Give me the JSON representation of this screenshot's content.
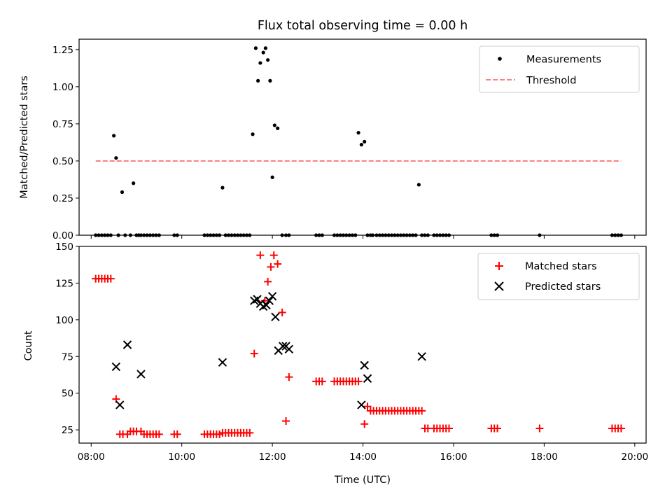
{
  "chart_data": [
    {
      "type": "scatter",
      "title": "Flux total observing time = 0.00 h",
      "xlabel": "",
      "ylabel": "Matched/Predicted stars",
      "xlim": [
        "07:44",
        "20:15"
      ],
      "ylim": [
        0,
        1.32
      ],
      "yticks": [
        "0.00",
        "0.25",
        "0.50",
        "0.75",
        "1.00",
        "1.25"
      ],
      "legend_position": "top-right",
      "series": [
        {
          "name": "Measurements",
          "kind": "points",
          "color": "#000000",
          "x": [
            "08:06",
            "08:10",
            "08:14",
            "08:18",
            "08:22",
            "08:26",
            "08:30",
            "08:33",
            "08:36",
            "08:41",
            "08:45",
            "08:52",
            "08:56",
            "09:00",
            "09:03",
            "09:06",
            "09:10",
            "09:14",
            "09:18",
            "09:22",
            "09:26",
            "09:30",
            "09:50",
            "09:54",
            "10:30",
            "10:34",
            "10:38",
            "10:42",
            "10:46",
            "10:50",
            "10:54",
            "10:58",
            "11:02",
            "11:06",
            "11:10",
            "11:14",
            "11:18",
            "11:22",
            "11:26",
            "11:30",
            "11:34",
            "11:38",
            "11:41",
            "11:44",
            "11:48",
            "11:51",
            "11:54",
            "11:57",
            "12:00",
            "12:03",
            "12:07",
            "12:13",
            "12:18",
            "12:22",
            "12:58",
            "13:02",
            "13:06",
            "13:22",
            "13:26",
            "13:30",
            "13:34",
            "13:38",
            "13:42",
            "13:46",
            "13:50",
            "13:54",
            "13:58",
            "14:02",
            "14:06",
            "14:10",
            "14:13",
            "14:18",
            "14:22",
            "14:26",
            "14:30",
            "14:34",
            "14:38",
            "14:42",
            "14:46",
            "14:50",
            "14:54",
            "14:58",
            "15:02",
            "15:06",
            "15:10",
            "15:14",
            "15:18",
            "15:22",
            "15:26",
            "15:34",
            "15:38",
            "15:42",
            "15:46",
            "15:50",
            "15:54",
            "16:50",
            "16:54",
            "16:58",
            "17:54",
            "19:30",
            "19:34",
            "19:38",
            "19:42"
          ],
          "y": [
            0,
            0,
            0,
            0,
            0,
            0,
            0.67,
            0.52,
            0,
            0.29,
            0,
            0,
            0.35,
            0,
            0,
            0,
            0,
            0,
            0,
            0,
            0,
            0,
            0,
            0,
            0,
            0,
            0,
            0,
            0,
            0,
            0.32,
            0,
            0,
            0,
            0,
            0,
            0,
            0,
            0,
            0,
            0.68,
            1.26,
            1.04,
            1.16,
            1.23,
            1.26,
            1.18,
            1.04,
            0.39,
            0.74,
            0.72,
            0,
            0,
            0,
            0,
            0,
            0,
            0,
            0,
            0,
            0,
            0,
            0,
            0,
            0,
            0.69,
            0.61,
            0.63,
            0,
            0,
            0,
            0,
            0,
            0,
            0,
            0,
            0,
            0,
            0,
            0,
            0,
            0,
            0,
            0,
            0,
            0.34,
            0,
            0,
            0,
            0,
            0,
            0,
            0,
            0,
            0,
            0,
            0,
            0,
            0,
            0,
            0,
            0,
            0
          ]
        },
        {
          "name": "Threshold",
          "kind": "dashed-line",
          "color": "#ff8080",
          "x": [
            "08:06",
            "19:42"
          ],
          "y": [
            0.5,
            0.5
          ]
        }
      ]
    },
    {
      "type": "scatter",
      "title": "",
      "xlabel": "Time (UTC)",
      "ylabel": "Count",
      "xlim": [
        "07:44",
        "20:15"
      ],
      "ylim": [
        16,
        150
      ],
      "yticks": [
        "25",
        "50",
        "75",
        "100",
        "125",
        "150"
      ],
      "xticks": [
        "08:00",
        "10:00",
        "12:00",
        "14:00",
        "16:00",
        "18:00",
        "20:00"
      ],
      "legend_position": "top-right",
      "series": [
        {
          "name": "Matched stars",
          "kind": "plus",
          "color": "#ff0000",
          "x": [
            "08:06",
            "08:10",
            "08:14",
            "08:18",
            "08:22",
            "08:26",
            "08:33",
            "08:38",
            "08:42",
            "08:48",
            "08:52",
            "08:56",
            "09:00",
            "09:06",
            "09:10",
            "09:14",
            "09:18",
            "09:22",
            "09:26",
            "09:30",
            "09:50",
            "09:54",
            "10:30",
            "10:34",
            "10:38",
            "10:42",
            "10:46",
            "10:50",
            "10:54",
            "10:58",
            "11:02",
            "11:06",
            "11:10",
            "11:14",
            "11:18",
            "11:22",
            "11:26",
            "11:30",
            "11:36",
            "11:44",
            "11:50",
            "11:54",
            "11:58",
            "12:02",
            "12:07",
            "12:13",
            "12:18",
            "12:22",
            "12:58",
            "13:02",
            "13:06",
            "13:22",
            "13:26",
            "13:30",
            "13:34",
            "13:38",
            "13:42",
            "13:46",
            "13:50",
            "13:54",
            "14:02",
            "14:06",
            "14:10",
            "14:14",
            "14:18",
            "14:22",
            "14:26",
            "14:30",
            "14:34",
            "14:38",
            "14:42",
            "14:46",
            "14:50",
            "14:54",
            "14:58",
            "15:02",
            "15:06",
            "15:10",
            "15:14",
            "15:18",
            "15:22",
            "15:26",
            "15:34",
            "15:38",
            "15:42",
            "15:46",
            "15:50",
            "15:54",
            "16:50",
            "16:54",
            "16:58",
            "17:54",
            "19:30",
            "19:34",
            "19:38",
            "19:42"
          ],
          "y": [
            128,
            128,
            128,
            128,
            128,
            128,
            46,
            22,
            22,
            22,
            24,
            24,
            24,
            24,
            22,
            22,
            22,
            22,
            22,
            22,
            22,
            22,
            22,
            22,
            22,
            22,
            22,
            22,
            23,
            23,
            23,
            23,
            23,
            23,
            23,
            23,
            23,
            23,
            77,
            144,
            113,
            126,
            136,
            144,
            138,
            105,
            31,
            61,
            58,
            58,
            58,
            58,
            58,
            58,
            58,
            58,
            58,
            58,
            58,
            58,
            29,
            41,
            38,
            38,
            38,
            38,
            38,
            38,
            38,
            38,
            38,
            38,
            38,
            38,
            38,
            38,
            38,
            38,
            38,
            38,
            26,
            26,
            26,
            26,
            26,
            26,
            26,
            26,
            26,
            26,
            26,
            26,
            26,
            26,
            26,
            26
          ]
        },
        {
          "name": "Predicted stars",
          "kind": "x",
          "color": "#000000",
          "x": [
            "08:33",
            "08:38",
            "08:48",
            "09:06",
            "10:54",
            "11:36",
            "11:40",
            "11:44",
            "11:48",
            "11:52",
            "11:56",
            "12:00",
            "12:04",
            "12:08",
            "12:14",
            "12:18",
            "12:22",
            "13:58",
            "14:02",
            "14:06",
            "15:18"
          ],
          "y": [
            68,
            42,
            83,
            63,
            71,
            113,
            114,
            111,
            109,
            110,
            113,
            116,
            102,
            79,
            82,
            82,
            80,
            42,
            69,
            60,
            75
          ]
        }
      ]
    }
  ]
}
